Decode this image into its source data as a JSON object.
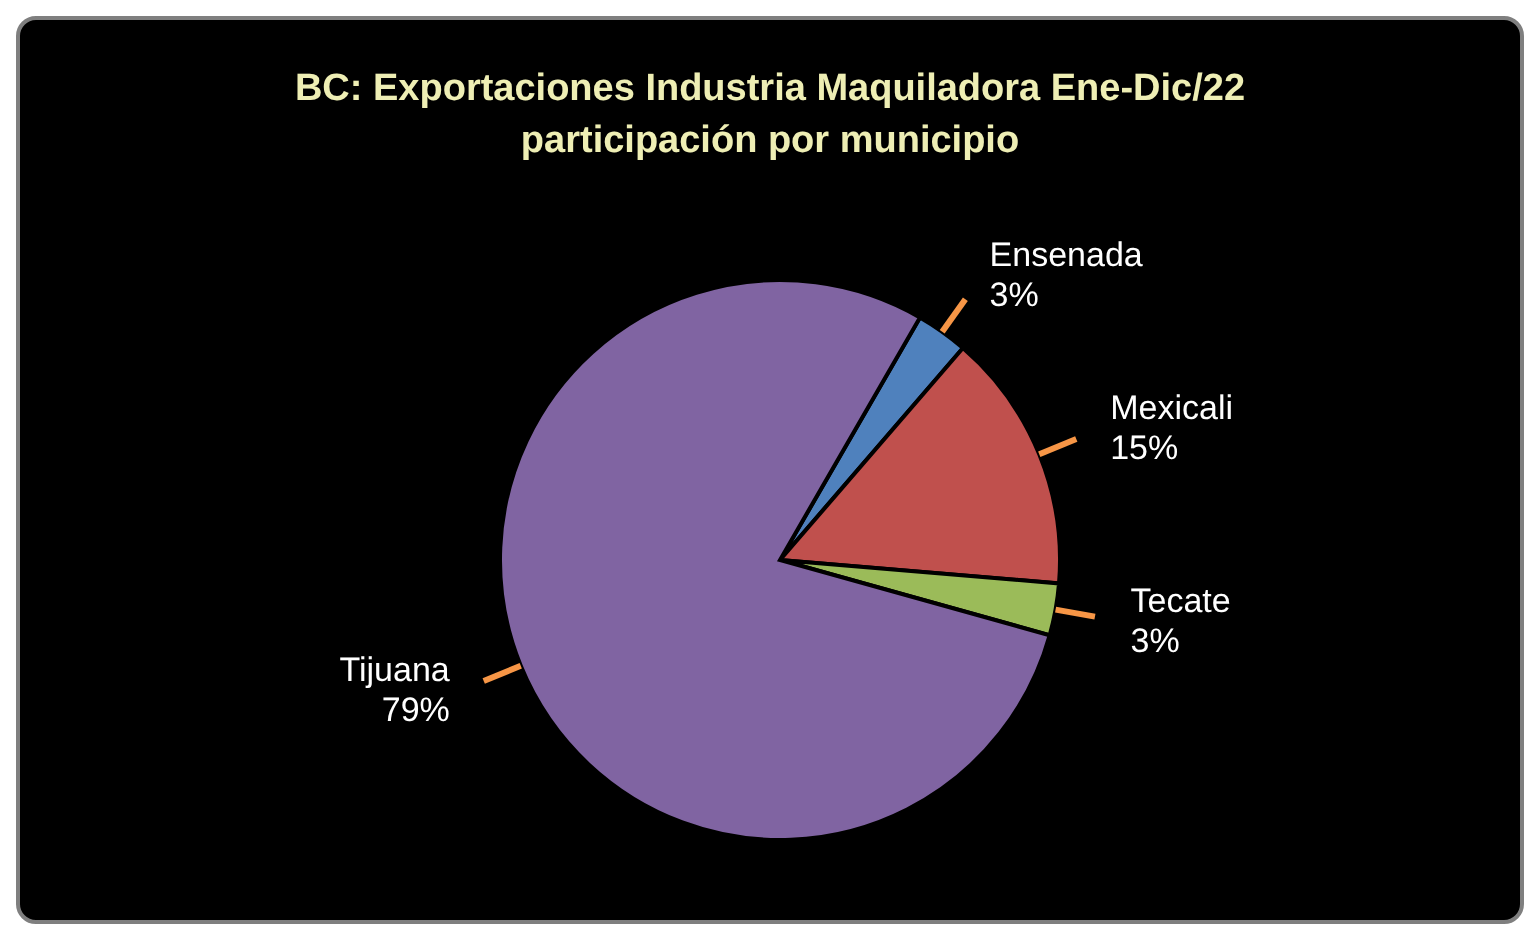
{
  "chart_data": {
    "type": "pie",
    "title": "BC: Exportaciones Industria Maquiladora Ene-Dic/22",
    "subtitle": "participación por municipio",
    "categories": [
      "Ensenada",
      "Mexicali",
      "Tecate",
      "Tijuana"
    ],
    "values": [
      3,
      15,
      3,
      79
    ],
    "colors": [
      "#4f81bd",
      "#c0504d",
      "#9bbb59",
      "#8064a2"
    ],
    "value_labels": [
      "3%",
      "15%",
      "3%",
      "79%"
    ]
  }
}
